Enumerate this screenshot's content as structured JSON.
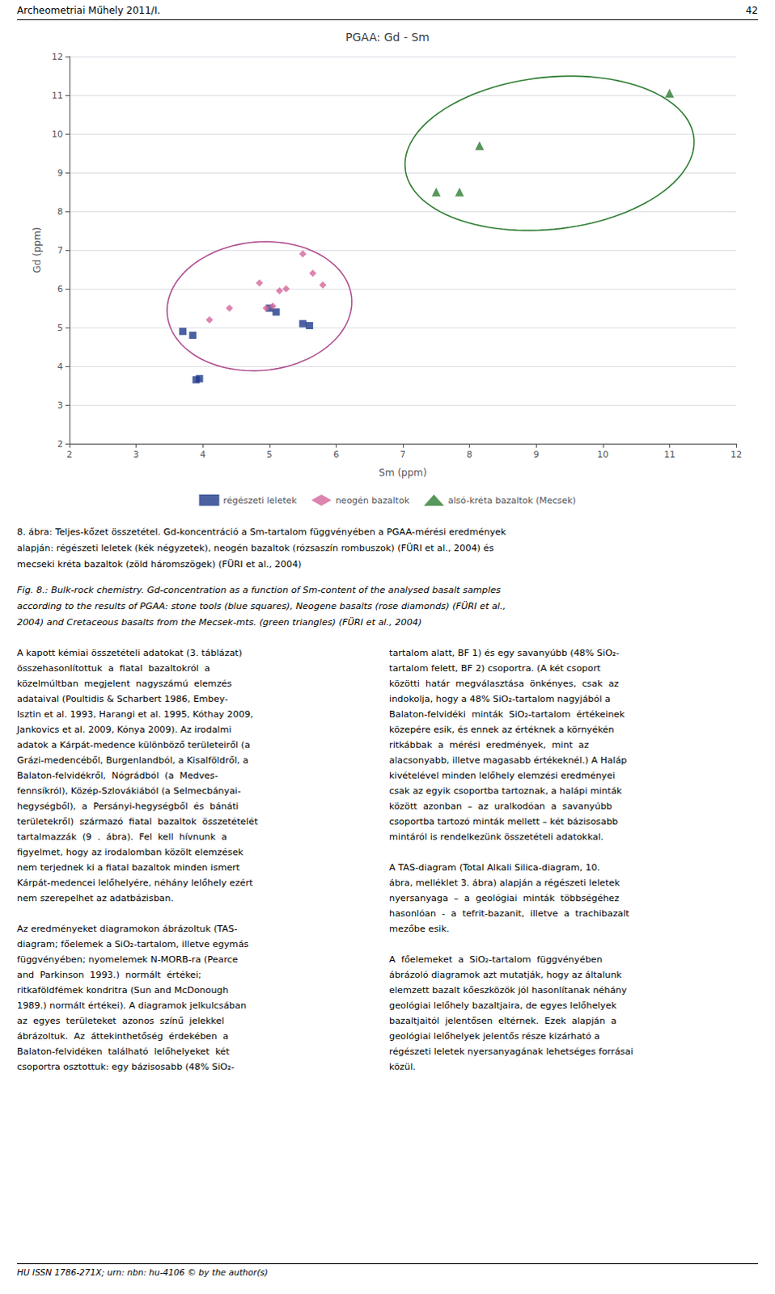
{
  "header": {
    "left": "Archeometriai Műhely 2011/I.",
    "right": "42"
  },
  "chart_data": {
    "type": "scatter",
    "title": "PGAA: Gd - Sm",
    "xlabel": "Sm (ppm)",
    "ylabel": "Gd (ppm)",
    "xlim": [
      2,
      12
    ],
    "ylim": [
      2,
      12
    ],
    "xticks": [
      2,
      3,
      4,
      5,
      6,
      7,
      8,
      9,
      10,
      11,
      12
    ],
    "yticks": [
      2,
      3,
      4,
      5,
      6,
      7,
      8,
      9,
      10,
      11,
      12
    ],
    "grid": true,
    "legend": "bottom",
    "series": [
      {
        "name": "régészeti leletek",
        "color": "#1F3A8A",
        "marker": "square",
        "values": [
          [
            3.7,
            4.9
          ],
          [
            3.85,
            4.8
          ],
          [
            3.9,
            3.65
          ],
          [
            3.95,
            3.68
          ],
          [
            5.0,
            5.5
          ],
          [
            5.1,
            5.4
          ],
          [
            5.5,
            5.1
          ],
          [
            5.6,
            5.05
          ]
        ]
      },
      {
        "name": "neogén bazaltok",
        "color": "#D4679B",
        "marker": "diamond",
        "values": [
          [
            4.1,
            5.2
          ],
          [
            4.4,
            5.5
          ],
          [
            4.85,
            6.15
          ],
          [
            4.95,
            5.5
          ],
          [
            5.05,
            5.55
          ],
          [
            5.15,
            5.95
          ],
          [
            5.25,
            6.0
          ],
          [
            5.5,
            6.9
          ],
          [
            5.65,
            6.4
          ],
          [
            5.8,
            6.1
          ]
        ]
      },
      {
        "name": "alsó-kréta bazaltok (Mecsek)",
        "color": "#2E7D32",
        "marker": "triangle",
        "values": [
          [
            7.5,
            8.5
          ],
          [
            7.85,
            8.5
          ],
          [
            8.15,
            9.7
          ],
          [
            11.0,
            11.05
          ]
        ]
      }
    ],
    "ellipses": [
      {
        "center": [
          4.85,
          5.55
        ],
        "width": 2.75,
        "height": 3.35,
        "angle": -10,
        "color": "#B05090"
      },
      {
        "center": [
          9.2,
          9.5
        ],
        "width": 4.5,
        "height": 3.8,
        "angle": 30,
        "color": "#2E7D32"
      }
    ]
  },
  "caption": {
    "hu": [
      "8. ábra: Teljes-kőzet összetétel. Gd-koncentráció a Sm-tartalom függvényében a PGAA-mérési eredmények",
      "alapján: régészeti leletek (kék négyzetek), neogén bazaltok (rózsaszín rombuszok) (FÜRI et al., 2004) és",
      "mecseki kréta bazaltok (zöld háromszögek) (FÜRI et al., 2004)"
    ],
    "en": [
      "Fig. 8.: Bulk-rock chemistry. Gd-concentration as a function of Sm-content of the analysed basalt samples",
      "according to the results of PGAA: stone tools (blue squares), Neogene basalts (rose diamonds) (FÜRI et al.,",
      "2004) and Cretaceous basalts from the Mecsek-mts. (green triangles) (FÜRI et al., 2004)"
    ]
  },
  "body_columns": [
    [
      [
        "A kapott kémiai összetételi adatokat (3. táblázat)",
        "összehasonlítottuk  a  fiatal  bazaltokról  a",
        "közelmúltban  megjelent  nagyszámú  elemzés",
        "adataival (Poultidis & Scharbert 1986, Embey-",
        "Isztin et al. 1993, Harangi et al. 1995, Kóthay 2009,",
        "Jankovics et al. 2009, Kónya 2009). Az irodalmi",
        "adatok a Kárpát-medence különböző területeiről (a",
        "Grázi-medencéből, Burgenlandból, a Kisalföldről, a",
        "Balaton-felvidékről,  Nógrádból  (a  Medves-",
        "fennsíkról), Közép-Szlovákiából (a Selmecbányai-",
        "hegységből),  a  Persányi-hegységből  és  bánáti",
        "területekről)  származó  fiatal  bazaltok  összetételét",
        "tartalmazzák  (9  .  ábra).  Fel  kell  hívnunk  a",
        "figyelmet, hogy az irodalomban közölt elemzések",
        "nem terjednek ki a fiatal bazaltok minden ismert",
        "Kárpát-medencei lelőhelyére, néhány lelőhely ezért",
        "nem szerepelhet az adatbázisban."
      ],
      [
        "Az eredményeket diagramokon ábrázoltuk (TAS-",
        "diagram; főelemek a SiO₂-tartalom, illetve egymás",
        "függvényében; nyomelemek N-MORB-ra (Pearce",
        "and  Parkinson  1993.)  normált  értékei;",
        "ritkaföldfémek kondritra (Sun and McDonough",
        "1989.) normált értékei). A diagramok jelkulcsában",
        "az  egyes  területeket  azonos  színű  jelekkel",
        "ábrázoltuk.  Az  áttekinthetőség  érdekében  a",
        "Balaton-felvidéken  található  lelőhelyeket  két",
        "csoportra osztottuk: egy bázisosabb (48% SiO₂-"
      ]
    ],
    [
      [
        "tartalom alatt, BF 1) és egy savanyúbb (48% SiO₂-",
        "tartalom felett, BF 2) csoportra. (A két csoport",
        "közötti  határ  megválasztása  önkényes,  csak  az",
        "indokolja, hogy a 48% SiO₂-tartalom nagyjából a",
        "Balaton-felvidéki  minták  SiO₂-tartalom  értékeinek",
        "közepére esik, és ennek az értéknek a környékén",
        "ritkábbak  a  mérési  eredmények,  mint  az",
        "alacsonyabb, illetve magasabb értékeknél.) A Haláp",
        "kivételével minden lelőhely elemzési eredményei",
        "csak az egyik csoportba tartoznak, a halápi minták",
        "között  azonban  –  az  uralkodóan  a  savanyúbb",
        "csoportba tartozó minták mellett – két bázisosabb",
        "mintáról is rendelkezünk összetételi adatokkal."
      ],
      [
        "A TAS-diagram (Total Alkali Silica-diagram, 10.",
        "ábra, melléklet 3. ábra) alapján a régészeti leletek",
        "nyersanyaga  –  a  geológiai  minták  többségéhez",
        "hasonlóan  -  a  tefrit-bazanit,  illetve  a  trachibazalt",
        "mezőbe esik."
      ],
      [
        "A  főelemeket  a  SiO₂-tartalom  függvényében",
        "ábrázoló diagramok azt mutatják, hogy az általunk",
        "elemzett bazalt kőeszközök jól hasonlítanak néhány",
        "geológiai lelőhely bazaltjaira, de egyes lelőhelyek",
        "bazaltjaitól  jelentősen  eltérnek.  Ezek  alapján  a",
        "geológiai lelőhelyek jelentős része kizárható a",
        "régészeti leletek nyersanyagának lehetséges forrásai",
        "közül."
      ]
    ]
  ],
  "footer": "HU ISSN 1786-271X; urn: nbn: hu-4106 © by the author(s)"
}
